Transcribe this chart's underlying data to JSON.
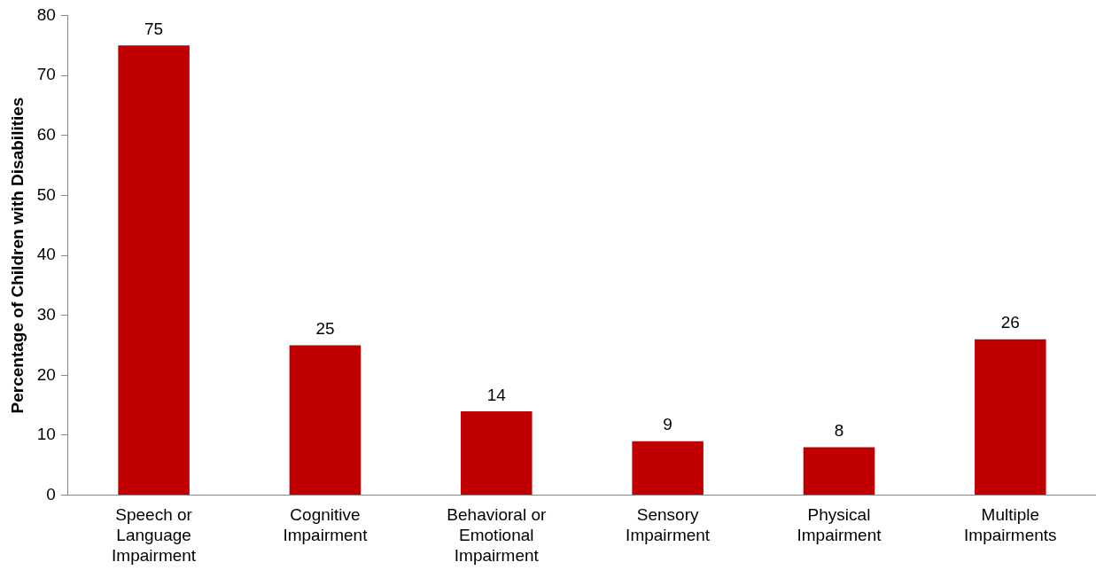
{
  "chart_data": {
    "type": "bar",
    "ylabel": "Percentage of Children with Disabilities",
    "categories": [
      "Speech or Language Impairment",
      "Cognitive Impairment",
      "Behavioral or Emotional Impairment",
      "Sensory Impairment",
      "Physical Impairment",
      "Multiple Impairments"
    ],
    "values": [
      75,
      25,
      14,
      9,
      8,
      26
    ],
    "color": "#c00000",
    "ylim": [
      0,
      80
    ],
    "yticks": [
      0,
      10,
      20,
      30,
      40,
      50,
      60,
      70,
      80
    ],
    "grid": false,
    "legend": false,
    "data_labels": true
  }
}
